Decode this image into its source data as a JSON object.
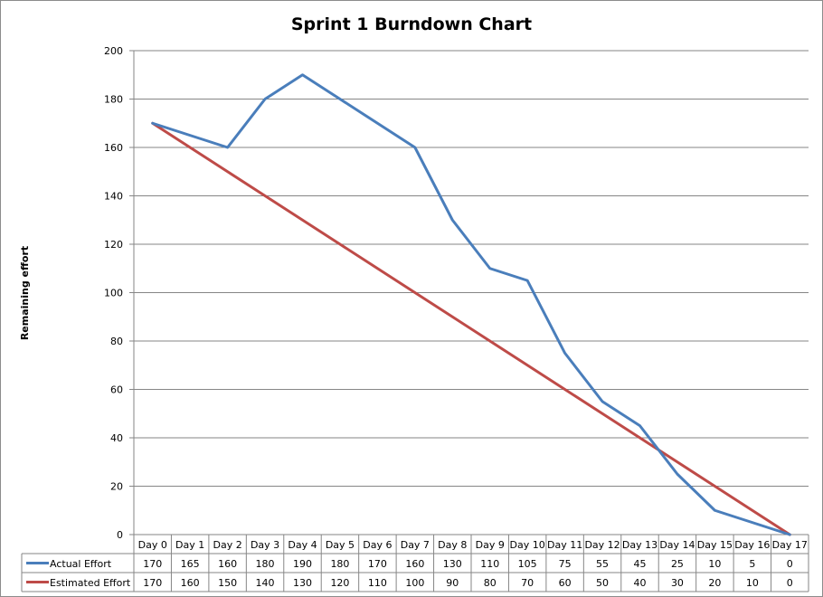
{
  "chart_data": {
    "type": "line",
    "title": "Sprint 1 Burndown Chart",
    "xlabel": "",
    "ylabel": "Remaining effort",
    "ylim": [
      0,
      200
    ],
    "yticks": [
      0,
      20,
      40,
      60,
      80,
      100,
      120,
      140,
      160,
      180,
      200
    ],
    "grid": true,
    "legend": "data-table",
    "categories": [
      "Day 0",
      "Day 1",
      "Day 2",
      "Day 3",
      "Day 4",
      "Day 5",
      "Day 6",
      "Day 7",
      "Day 8",
      "Day 9",
      "Day 10",
      "Day 11",
      "Day 12",
      "Day 13",
      "Day 14",
      "Day 15",
      "Day 16",
      "Day 17"
    ],
    "series": [
      {
        "name": "Actual Effort",
        "color": "#4a7ebb",
        "values": [
          170,
          165,
          160,
          180,
          190,
          180,
          170,
          160,
          130,
          110,
          105,
          75,
          55,
          45,
          25,
          10,
          5,
          0
        ]
      },
      {
        "name": "Estimated Effort",
        "color": "#be4b48",
        "values": [
          170,
          160,
          150,
          140,
          130,
          120,
          110,
          100,
          90,
          80,
          70,
          60,
          50,
          40,
          30,
          20,
          10,
          0
        ]
      }
    ]
  },
  "colors": {
    "grid": "#868686",
    "axis": "#868686",
    "background": "#ffffff"
  }
}
